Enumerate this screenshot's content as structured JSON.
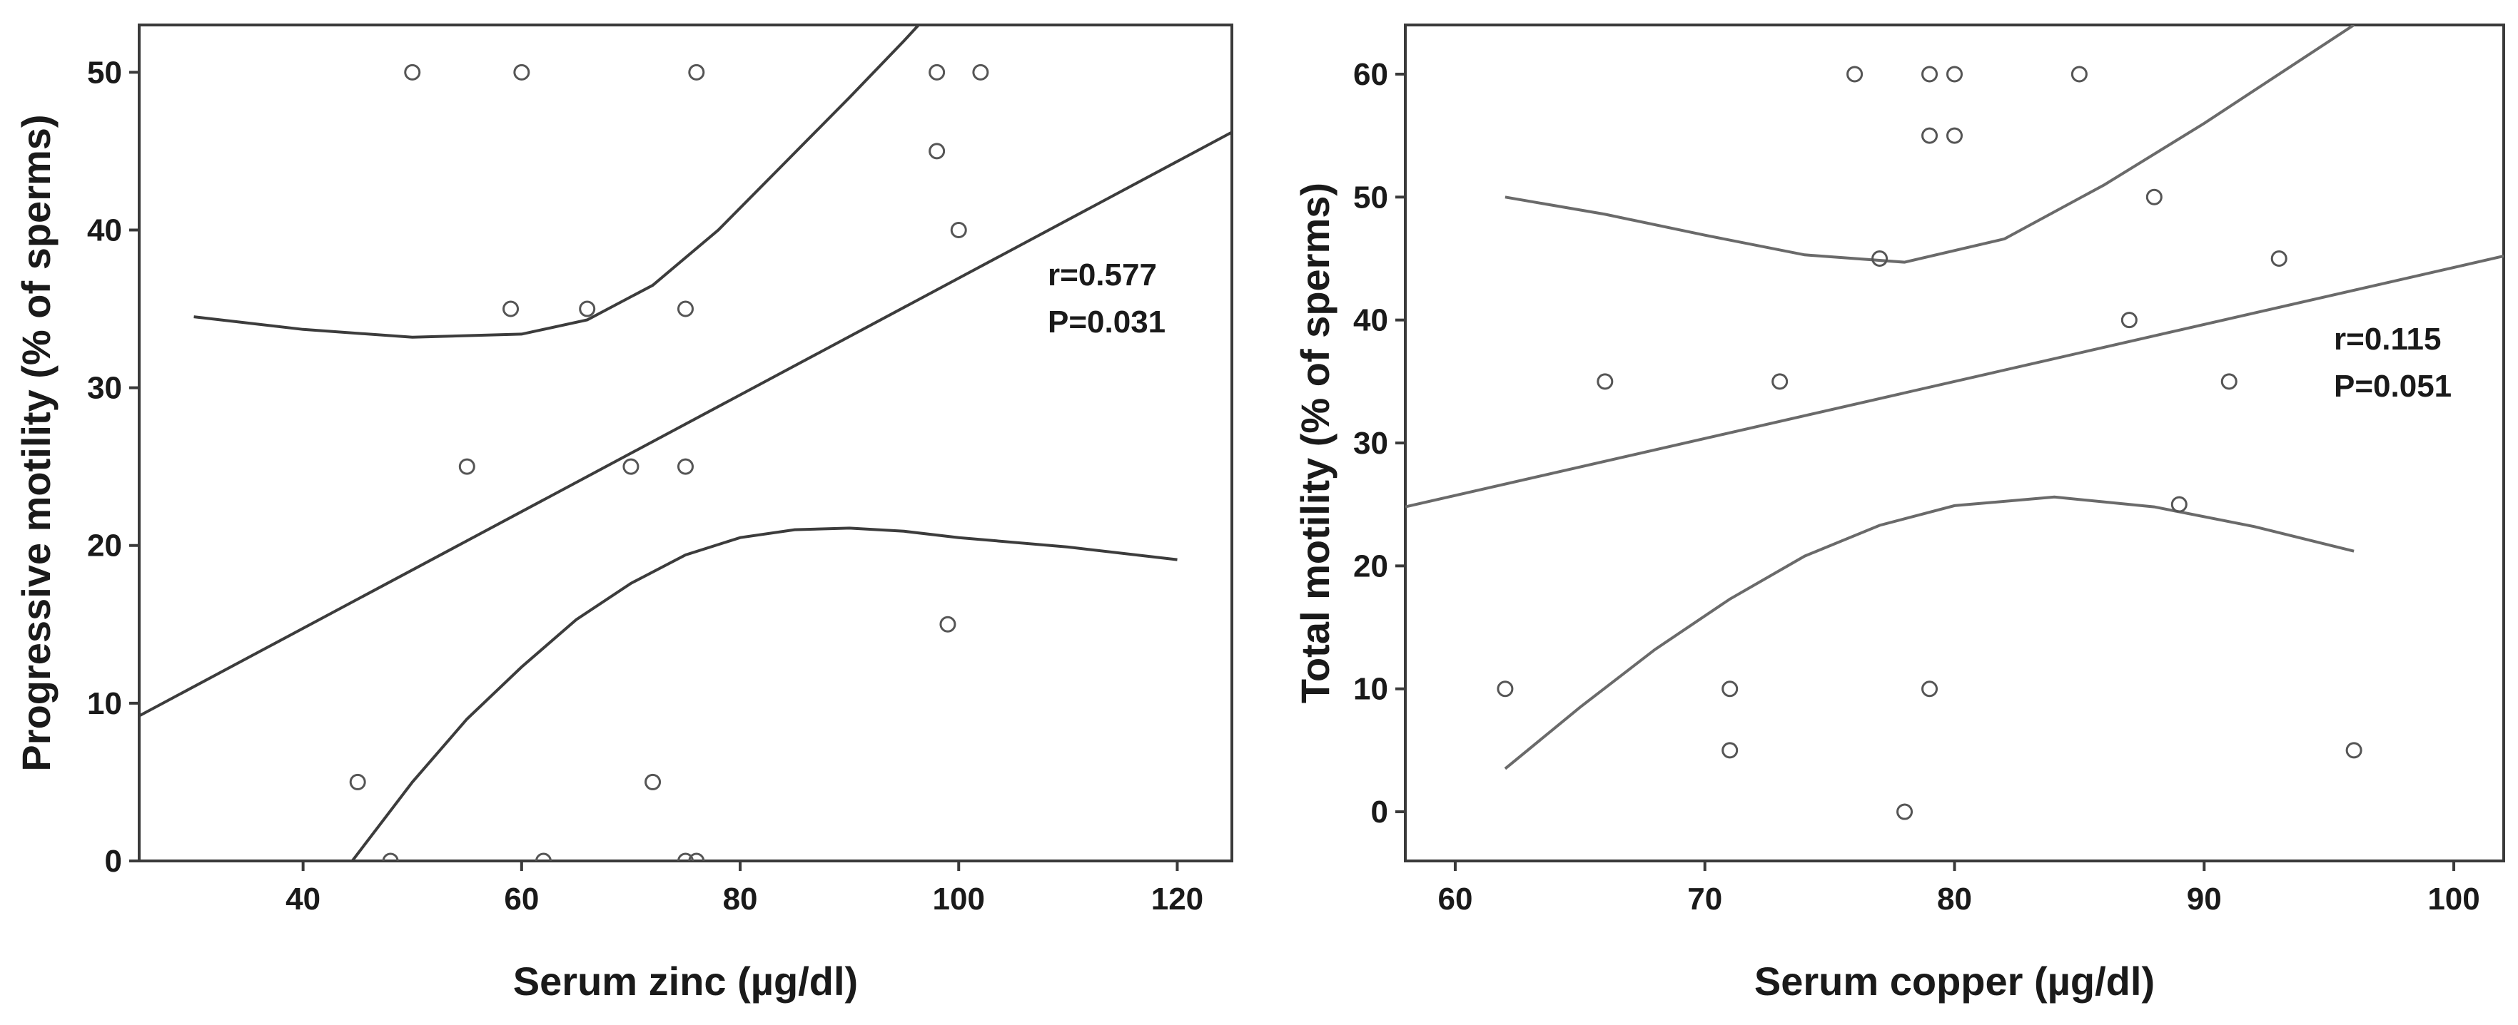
{
  "chart_data": [
    {
      "type": "scatter",
      "id": "zinc",
      "xlabel": "Serum zinc (µg/dl)",
      "ylabel": "Progressive motility (% of sperms)",
      "xlim": [
        25,
        125
      ],
      "ylim": [
        0,
        53
      ],
      "xticks": [
        40,
        60,
        80,
        100,
        120
      ],
      "yticks": [
        0,
        10,
        20,
        30,
        40,
        50
      ],
      "grid": false,
      "points": [
        [
          50,
          50
        ],
        [
          60,
          50
        ],
        [
          76,
          50
        ],
        [
          98,
          50
        ],
        [
          102,
          50
        ],
        [
          98,
          45
        ],
        [
          100,
          40
        ],
        [
          59,
          35
        ],
        [
          66,
          35
        ],
        [
          75,
          35
        ],
        [
          55,
          25
        ],
        [
          70,
          25
        ],
        [
          75,
          25
        ],
        [
          99,
          15
        ],
        [
          45,
          5
        ],
        [
          72,
          5
        ],
        [
          48,
          0
        ],
        [
          62,
          0
        ],
        [
          75,
          0
        ],
        [
          76,
          0
        ]
      ],
      "fit_line": [
        [
          25,
          9.2
        ],
        [
          125,
          46.2
        ]
      ],
      "ci_upper": [
        [
          30,
          34.5
        ],
        [
          40,
          33.7
        ],
        [
          50,
          33.2
        ],
        [
          60,
          33.4
        ],
        [
          66,
          34.3
        ],
        [
          72,
          36.5
        ],
        [
          78,
          40.0
        ],
        [
          84,
          44.2
        ],
        [
          90,
          48.4
        ],
        [
          95,
          52.0
        ],
        [
          99,
          55
        ]
      ],
      "ci_lower": [
        [
          44.5,
          0
        ],
        [
          50,
          5.0
        ],
        [
          55,
          9.0
        ],
        [
          60,
          12.3
        ],
        [
          65,
          15.3
        ],
        [
          70,
          17.6
        ],
        [
          75,
          19.4
        ],
        [
          80,
          20.5
        ],
        [
          85,
          21.0
        ],
        [
          90,
          21.1
        ],
        [
          95,
          20.9
        ],
        [
          100,
          20.5
        ],
        [
          110,
          19.9
        ],
        [
          120,
          19.1
        ]
      ],
      "annotations": [
        "r=0.577",
        "P=0.031"
      ]
    },
    {
      "type": "scatter",
      "id": "copper",
      "xlabel": "Serum copper (µg/dl)",
      "ylabel": "Total motility (% of sperms)",
      "xlim": [
        58,
        102
      ],
      "ylim": [
        -4,
        64
      ],
      "xticks": [
        60,
        70,
        80,
        90,
        100
      ],
      "yticks": [
        0,
        10,
        20,
        30,
        40,
        50,
        60
      ],
      "grid": false,
      "points": [
        [
          76,
          60
        ],
        [
          79,
          60
        ],
        [
          80,
          60
        ],
        [
          85,
          60
        ],
        [
          79,
          55
        ],
        [
          80,
          55
        ],
        [
          88,
          50
        ],
        [
          77,
          45
        ],
        [
          93,
          45
        ],
        [
          87,
          40
        ],
        [
          66,
          35
        ],
        [
          73,
          35
        ],
        [
          91,
          35
        ],
        [
          89,
          25
        ],
        [
          62,
          10
        ],
        [
          71,
          10
        ],
        [
          79,
          10
        ],
        [
          71,
          5
        ],
        [
          96,
          5
        ],
        [
          78,
          0
        ]
      ],
      "fit_line": [
        [
          58,
          24.8
        ],
        [
          102,
          45.2
        ]
      ],
      "ci_upper": [
        [
          62,
          50
        ],
        [
          66,
          48.6
        ],
        [
          70,
          46.9
        ],
        [
          74,
          45.3
        ],
        [
          78,
          44.7
        ],
        [
          82,
          46.6
        ],
        [
          86,
          51.0
        ],
        [
          90,
          56.0
        ],
        [
          93,
          60.0
        ],
        [
          96,
          64
        ]
      ],
      "ci_lower": [
        [
          62,
          3.5
        ],
        [
          65,
          8.5
        ],
        [
          68,
          13.2
        ],
        [
          71,
          17.3
        ],
        [
          74,
          20.8
        ],
        [
          77,
          23.3
        ],
        [
          80,
          24.9
        ],
        [
          84,
          25.6
        ],
        [
          88,
          24.8
        ],
        [
          92,
          23.2
        ],
        [
          96,
          21.2
        ]
      ],
      "annotations": [
        "r=0.115",
        "P=0.051"
      ]
    }
  ]
}
